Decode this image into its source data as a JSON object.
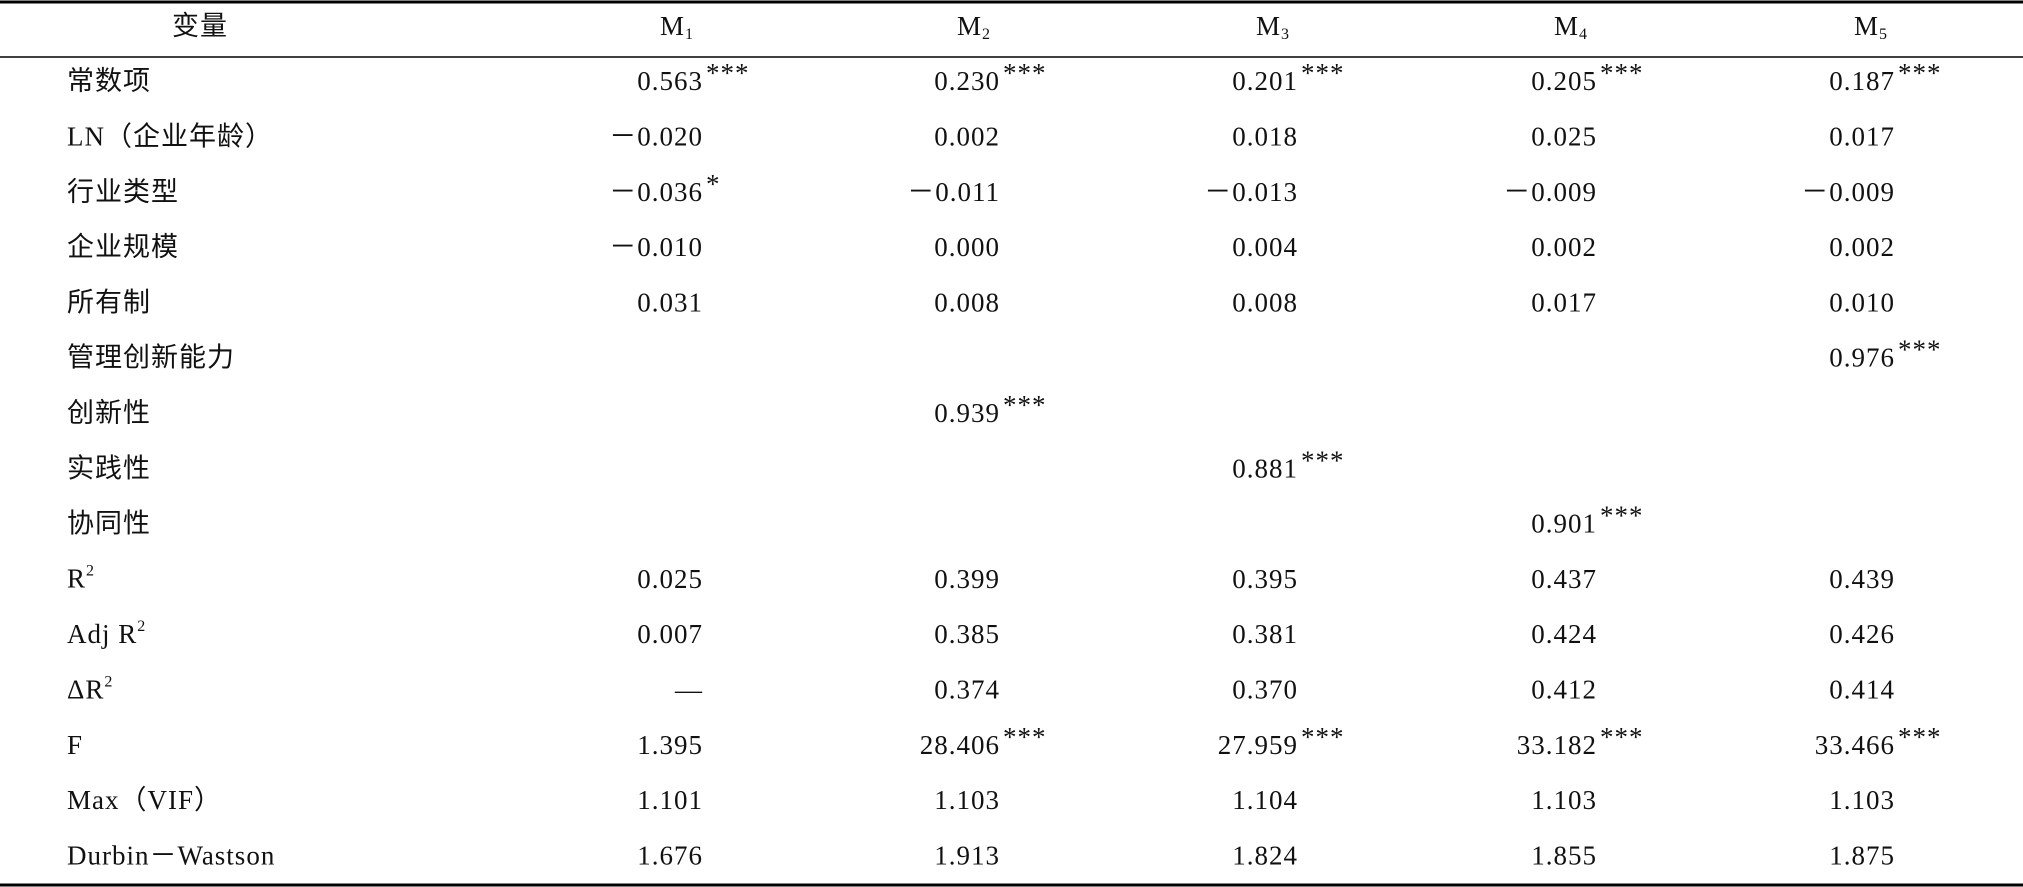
{
  "table": {
    "header": [
      "变量",
      {
        "text": "M",
        "sub": "1"
      },
      {
        "text": "M",
        "sub": "2"
      },
      {
        "text": "M",
        "sub": "3"
      },
      {
        "text": "M",
        "sub": "4"
      },
      {
        "text": "M",
        "sub": "5"
      }
    ],
    "rows": [
      {
        "label": "常数项",
        "cells": [
          {
            "text": "0.563",
            "sup": "***"
          },
          {
            "text": "0.230",
            "sup": "***"
          },
          {
            "text": "0.201",
            "sup": "***"
          },
          {
            "text": "0.205",
            "sup": "***"
          },
          {
            "text": "0.187",
            "sup": "***"
          }
        ]
      },
      {
        "label": "LN（企业年龄）",
        "cells": [
          "－0.020",
          "0.002",
          "0.018",
          "0.025",
          "0.017"
        ]
      },
      {
        "label": "行业类型",
        "cells": [
          {
            "text": "－0.036",
            "sup": "*"
          },
          "－0.011",
          "－0.013",
          "－0.009",
          "－0.009"
        ]
      },
      {
        "label": "企业规模",
        "cells": [
          "－0.010",
          "0.000",
          "0.004",
          "0.002",
          "0.002"
        ]
      },
      {
        "label": "所有制",
        "cells": [
          "0.031",
          "0.008",
          "0.008",
          "0.017",
          "0.010"
        ]
      },
      {
        "label": "管理创新能力",
        "cells": [
          null,
          null,
          null,
          null,
          {
            "text": "0.976",
            "sup": "***"
          }
        ]
      },
      {
        "label": "创新性",
        "cells": [
          null,
          {
            "text": "0.939",
            "sup": "***"
          },
          null,
          null,
          null
        ]
      },
      {
        "label": "实践性",
        "cells": [
          null,
          null,
          {
            "text": "0.881",
            "sup": "***"
          },
          null,
          null
        ]
      },
      {
        "label": "协同性",
        "cells": [
          null,
          null,
          null,
          {
            "text": "0.901",
            "sup": "***"
          },
          null
        ]
      },
      {
        "label": {
          "text": "R",
          "sup": "2"
        },
        "cells": [
          "0.025",
          "0.399",
          "0.395",
          "0.437",
          "0.439"
        ]
      },
      {
        "label": {
          "text": "Adj R",
          "sup": "2"
        },
        "cells": [
          "0.007",
          "0.385",
          "0.381",
          "0.424",
          "0.426"
        ]
      },
      {
        "label": {
          "text": "ΔR",
          "sup": "2"
        },
        "cells": [
          "—",
          "0.374",
          "0.370",
          "0.412",
          "0.414"
        ]
      },
      {
        "label": "F",
        "cells": [
          "1.395",
          {
            "text": "28.406",
            "sup": "***"
          },
          {
            "text": "27.959",
            "sup": "***"
          },
          {
            "text": "33.182",
            "sup": "***"
          },
          {
            "text": "33.466",
            "sup": "***"
          }
        ]
      },
      {
        "label": "Max（VIF）",
        "cells": [
          "1.101",
          "1.103",
          "1.104",
          "1.103",
          "1.103"
        ]
      },
      {
        "label": "Durbin－Wastson",
        "cells": [
          "1.676",
          "1.913",
          "1.824",
          "1.855",
          "1.875"
        ]
      }
    ]
  }
}
